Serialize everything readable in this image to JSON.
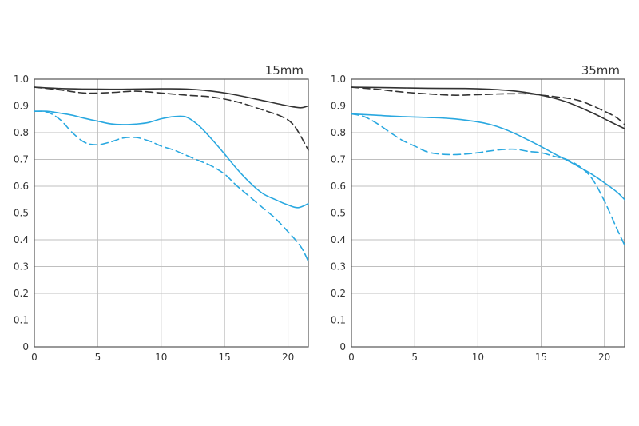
{
  "chart_data": [
    {
      "type": "line",
      "title": "15mm",
      "xlabel": "",
      "ylabel": "",
      "xlim": [
        0,
        21.6
      ],
      "ylim": [
        0,
        1.0
      ],
      "x_ticks": [
        "0",
        "5",
        "10",
        "15",
        "20"
      ],
      "y_ticks": [
        "0",
        "0.1",
        "0.2",
        "0.3",
        "0.4",
        "0.5",
        "0.6",
        "0.7",
        "0.8",
        "0.9",
        "1.0"
      ],
      "grid": true,
      "series": [
        {
          "color": "#333333",
          "dash": "solid",
          "points": [
            [
              0,
              0.97
            ],
            [
              2,
              0.965
            ],
            [
              4,
              0.963
            ],
            [
              6,
              0.962
            ],
            [
              8,
              0.963
            ],
            [
              10,
              0.964
            ],
            [
              12,
              0.963
            ],
            [
              14,
              0.955
            ],
            [
              16,
              0.94
            ],
            [
              18,
              0.92
            ],
            [
              20,
              0.9
            ],
            [
              21,
              0.893
            ],
            [
              21.6,
              0.9
            ]
          ]
        },
        {
          "color": "#333333",
          "dash": "dashed",
          "points": [
            [
              0,
              0.97
            ],
            [
              2,
              0.96
            ],
            [
              4,
              0.948
            ],
            [
              6,
              0.95
            ],
            [
              8,
              0.955
            ],
            [
              10,
              0.948
            ],
            [
              12,
              0.94
            ],
            [
              14,
              0.933
            ],
            [
              16,
              0.915
            ],
            [
              18,
              0.885
            ],
            [
              19.5,
              0.86
            ],
            [
              20.5,
              0.825
            ],
            [
              21.6,
              0.735
            ]
          ]
        },
        {
          "color": "#29a8e0",
          "dash": "solid",
          "points": [
            [
              0,
              0.88
            ],
            [
              1,
              0.88
            ],
            [
              2,
              0.873
            ],
            [
              3,
              0.865
            ],
            [
              4,
              0.853
            ],
            [
              5,
              0.843
            ],
            [
              6,
              0.833
            ],
            [
              7,
              0.83
            ],
            [
              8,
              0.832
            ],
            [
              9,
              0.838
            ],
            [
              10,
              0.852
            ],
            [
              11,
              0.86
            ],
            [
              12,
              0.858
            ],
            [
              13,
              0.825
            ],
            [
              14,
              0.775
            ],
            [
              15,
              0.72
            ],
            [
              16,
              0.663
            ],
            [
              17,
              0.613
            ],
            [
              18,
              0.573
            ],
            [
              19,
              0.55
            ],
            [
              20,
              0.53
            ],
            [
              20.8,
              0.52
            ],
            [
              21.6,
              0.535
            ]
          ]
        },
        {
          "color": "#29a8e0",
          "dash": "dashed",
          "points": [
            [
              0,
              0.88
            ],
            [
              1,
              0.877
            ],
            [
              2,
              0.85
            ],
            [
              3,
              0.8
            ],
            [
              4,
              0.763
            ],
            [
              5,
              0.755
            ],
            [
              6,
              0.765
            ],
            [
              7,
              0.78
            ],
            [
              8,
              0.782
            ],
            [
              9,
              0.77
            ],
            [
              10,
              0.75
            ],
            [
              11,
              0.735
            ],
            [
              12,
              0.715
            ],
            [
              13,
              0.695
            ],
            [
              14,
              0.675
            ],
            [
              15,
              0.645
            ],
            [
              16,
              0.6
            ],
            [
              17,
              0.56
            ],
            [
              18,
              0.52
            ],
            [
              19,
              0.48
            ],
            [
              20,
              0.43
            ],
            [
              21,
              0.375
            ],
            [
              21.6,
              0.32
            ]
          ]
        }
      ]
    },
    {
      "type": "line",
      "title": "35mm",
      "xlabel": "",
      "ylabel": "",
      "xlim": [
        0,
        21.6
      ],
      "ylim": [
        0,
        1.0
      ],
      "x_ticks": [
        "0",
        "5",
        "10",
        "15",
        "20"
      ],
      "y_ticks": [
        "0",
        "0.1",
        "0.2",
        "0.3",
        "0.4",
        "0.5",
        "0.6",
        "0.7",
        "0.8",
        "0.9",
        "1.0"
      ],
      "grid": true,
      "series": [
        {
          "color": "#333333",
          "dash": "solid",
          "points": [
            [
              0,
              0.97
            ],
            [
              3,
              0.968
            ],
            [
              6,
              0.966
            ],
            [
              9,
              0.965
            ],
            [
              11,
              0.962
            ],
            [
              13,
              0.955
            ],
            [
              15,
              0.94
            ],
            [
              17,
              0.915
            ],
            [
              19,
              0.875
            ],
            [
              20.5,
              0.84
            ],
            [
              21.6,
              0.815
            ]
          ]
        },
        {
          "color": "#333333",
          "dash": "dashed",
          "points": [
            [
              0,
              0.97
            ],
            [
              2,
              0.962
            ],
            [
              4,
              0.952
            ],
            [
              6,
              0.945
            ],
            [
              8,
              0.94
            ],
            [
              10,
              0.942
            ],
            [
              12,
              0.945
            ],
            [
              14,
              0.945
            ],
            [
              15,
              0.94
            ],
            [
              16,
              0.935
            ],
            [
              18,
              0.92
            ],
            [
              20,
              0.88
            ],
            [
              21,
              0.855
            ],
            [
              21.6,
              0.83
            ]
          ]
        },
        {
          "color": "#29a8e0",
          "dash": "solid",
          "points": [
            [
              0,
              0.87
            ],
            [
              2,
              0.865
            ],
            [
              4,
              0.86
            ],
            [
              6,
              0.857
            ],
            [
              8,
              0.852
            ],
            [
              10,
              0.84
            ],
            [
              11,
              0.83
            ],
            [
              12,
              0.815
            ],
            [
              13,
              0.795
            ],
            [
              14,
              0.772
            ],
            [
              15,
              0.748
            ],
            [
              16,
              0.722
            ],
            [
              17,
              0.698
            ],
            [
              18,
              0.672
            ],
            [
              19,
              0.645
            ],
            [
              20,
              0.613
            ],
            [
              21,
              0.578
            ],
            [
              21.6,
              0.55
            ]
          ]
        },
        {
          "color": "#29a8e0",
          "dash": "dashed",
          "points": [
            [
              0,
              0.87
            ],
            [
              1,
              0.86
            ],
            [
              2,
              0.835
            ],
            [
              3,
              0.803
            ],
            [
              4,
              0.772
            ],
            [
              5,
              0.75
            ],
            [
              6,
              0.728
            ],
            [
              7,
              0.72
            ],
            [
              8,
              0.718
            ],
            [
              9,
              0.72
            ],
            [
              10,
              0.725
            ],
            [
              11,
              0.732
            ],
            [
              12,
              0.737
            ],
            [
              13,
              0.738
            ],
            [
              14,
              0.73
            ],
            [
              15,
              0.725
            ],
            [
              16,
              0.712
            ],
            [
              17,
              0.7
            ],
            [
              18,
              0.675
            ],
            [
              19,
              0.63
            ],
            [
              20,
              0.545
            ],
            [
              21,
              0.44
            ],
            [
              21.6,
              0.38
            ]
          ]
        }
      ]
    }
  ]
}
